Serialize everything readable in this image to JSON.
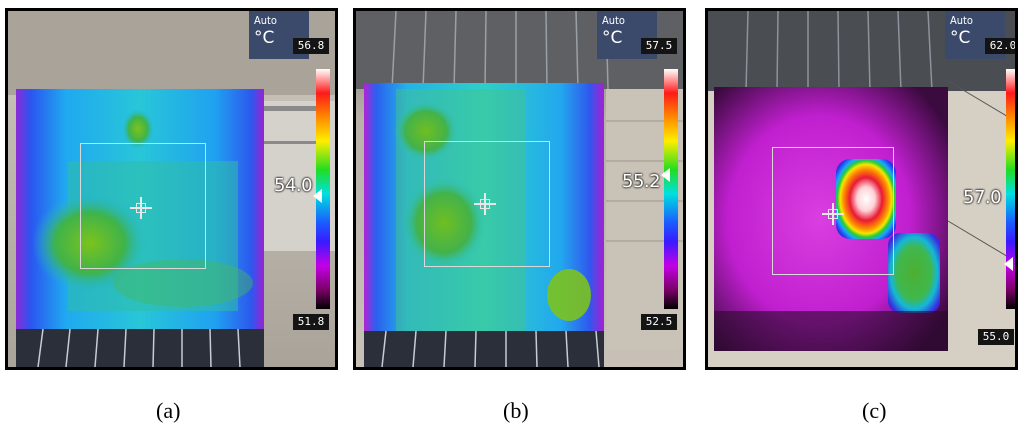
{
  "panels": [
    {
      "id": "a",
      "mode_label": "Auto",
      "unit": "°C",
      "scale_max": "56.8",
      "scale_min": "51.8",
      "spot_reading": "54.0",
      "caption": "(a)"
    },
    {
      "id": "b",
      "mode_label": "Auto",
      "unit": "°C",
      "scale_max": "57.5",
      "scale_min": "52.5",
      "spot_reading": "55.2",
      "caption": "(b)"
    },
    {
      "id": "c",
      "mode_label": "Auto",
      "unit": "°C",
      "scale_max": "62.0",
      "scale_min": "55.0",
      "spot_reading": "57.0",
      "caption": "(c)"
    }
  ],
  "colors": {
    "cool_background_a": "#2aa6ff",
    "hotspot_green": "#4caf32",
    "magenta_background_c": "#c21fd1",
    "hotspot_red": "#e0162e",
    "hud_header": "#3b4a6b"
  },
  "scale_palette": [
    "white",
    "red",
    "orange",
    "yellow",
    "green",
    "cyan",
    "blue",
    "violet",
    "magenta",
    "black"
  ]
}
